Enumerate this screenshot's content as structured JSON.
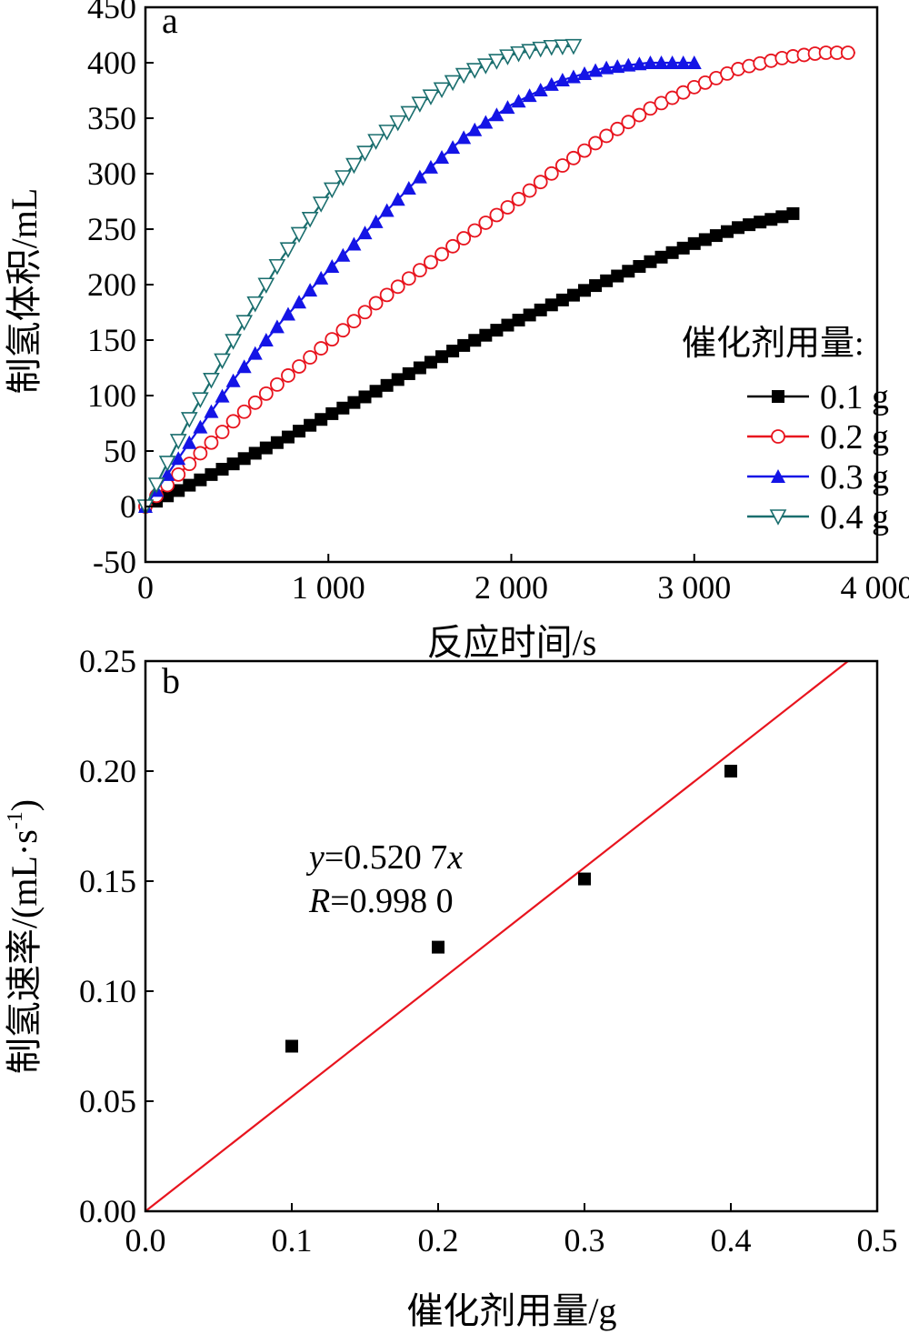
{
  "chart_data": [
    {
      "panel_label": "a",
      "type": "line",
      "xlabel": "反应时间/s",
      "ylabel": "制氢体积/mL",
      "xlim": [
        0,
        4000
      ],
      "ylim": [
        -50,
        450
      ],
      "xticks": [
        0,
        1000,
        2000,
        3000,
        4000
      ],
      "xtick_labels": [
        "0",
        "1 000",
        "2 000",
        "3 000",
        "4 000"
      ],
      "yticks": [
        -50,
        0,
        50,
        100,
        150,
        200,
        250,
        300,
        350,
        400,
        450
      ],
      "ytick_labels": [
        "-50",
        "0",
        "50",
        "100",
        "150",
        "200",
        "250",
        "300",
        "350",
        "400",
        "450"
      ],
      "grid": false,
      "legend_title": "催化剂用量:",
      "legend_position": "right",
      "series": [
        {
          "name": "0.1 g",
          "color": "#000000",
          "marker": "filled-square",
          "x": [
            0,
            250,
            500,
            750,
            1000,
            1250,
            1500,
            1750,
            2000,
            2250,
            2500,
            2750,
            3000,
            3250,
            3500,
            3560
          ],
          "y": [
            0,
            20,
            40,
            60,
            82,
            103,
            125,
            146,
            165,
            184,
            202,
            220,
            237,
            252,
            262,
            265
          ]
        },
        {
          "name": "0.2 g",
          "color": "#e8141e",
          "marker": "open-circle",
          "x": [
            0,
            250,
            500,
            750,
            1000,
            1250,
            1500,
            1750,
            2000,
            2250,
            2500,
            2750,
            3000,
            3250,
            3500,
            3700,
            3880
          ],
          "y": [
            0,
            40,
            80,
            114,
            148,
            182,
            213,
            243,
            272,
            304,
            332,
            358,
            378,
            395,
            405,
            409,
            409
          ]
        },
        {
          "name": "0.3 g",
          "color": "#1414e6",
          "marker": "filled-triangle-up",
          "x": [
            0,
            250,
            500,
            750,
            1000,
            1250,
            1500,
            1750,
            2000,
            2250,
            2500,
            2750,
            3000
          ],
          "y": [
            0,
            60,
            118,
            168,
            213,
            255,
            297,
            334,
            362,
            383,
            395,
            400,
            400
          ]
        },
        {
          "name": "0.4 g",
          "color": "#1a6e6e",
          "marker": "open-triangle-down",
          "x": [
            0,
            250,
            500,
            750,
            1000,
            1250,
            1500,
            1750,
            2000,
            2200,
            2340
          ],
          "y": [
            0,
            82,
            155,
            225,
            282,
            328,
            363,
            390,
            407,
            414,
            415
          ]
        }
      ]
    },
    {
      "panel_label": "b",
      "type": "scatter",
      "xlabel": "催化剂用量/g",
      "ylabel": "制氢速率/(mL·s",
      "ylabel_superscript": "-1",
      "ylabel_close": ")",
      "xlim": [
        0,
        0.5
      ],
      "ylim": [
        0,
        0.25
      ],
      "xticks": [
        0,
        0.1,
        0.2,
        0.3,
        0.4,
        0.5
      ],
      "xtick_labels": [
        "0.0",
        "0.1",
        "0.2",
        "0.3",
        "0.4",
        "0.5"
      ],
      "yticks": [
        0,
        0.05,
        0.1,
        0.15,
        0.2,
        0.25
      ],
      "ytick_labels": [
        "0.00",
        "0.05",
        "0.10",
        "0.15",
        "0.20",
        "0.25"
      ],
      "grid": false,
      "points": {
        "color": "#000000",
        "marker": "filled-square",
        "x": [
          0.1,
          0.2,
          0.3,
          0.4
        ],
        "y": [
          0.075,
          0.12,
          0.151,
          0.2
        ]
      },
      "fit_line": {
        "color": "#e8141e",
        "slope": 0.5207,
        "x_range": [
          0,
          0.48
        ]
      },
      "annotations": {
        "equation_y": "y",
        "equation_rest": "=0.520 7",
        "equation_x": "x",
        "r_symbol": "R",
        "r_rest": "=0.998 0"
      }
    }
  ]
}
